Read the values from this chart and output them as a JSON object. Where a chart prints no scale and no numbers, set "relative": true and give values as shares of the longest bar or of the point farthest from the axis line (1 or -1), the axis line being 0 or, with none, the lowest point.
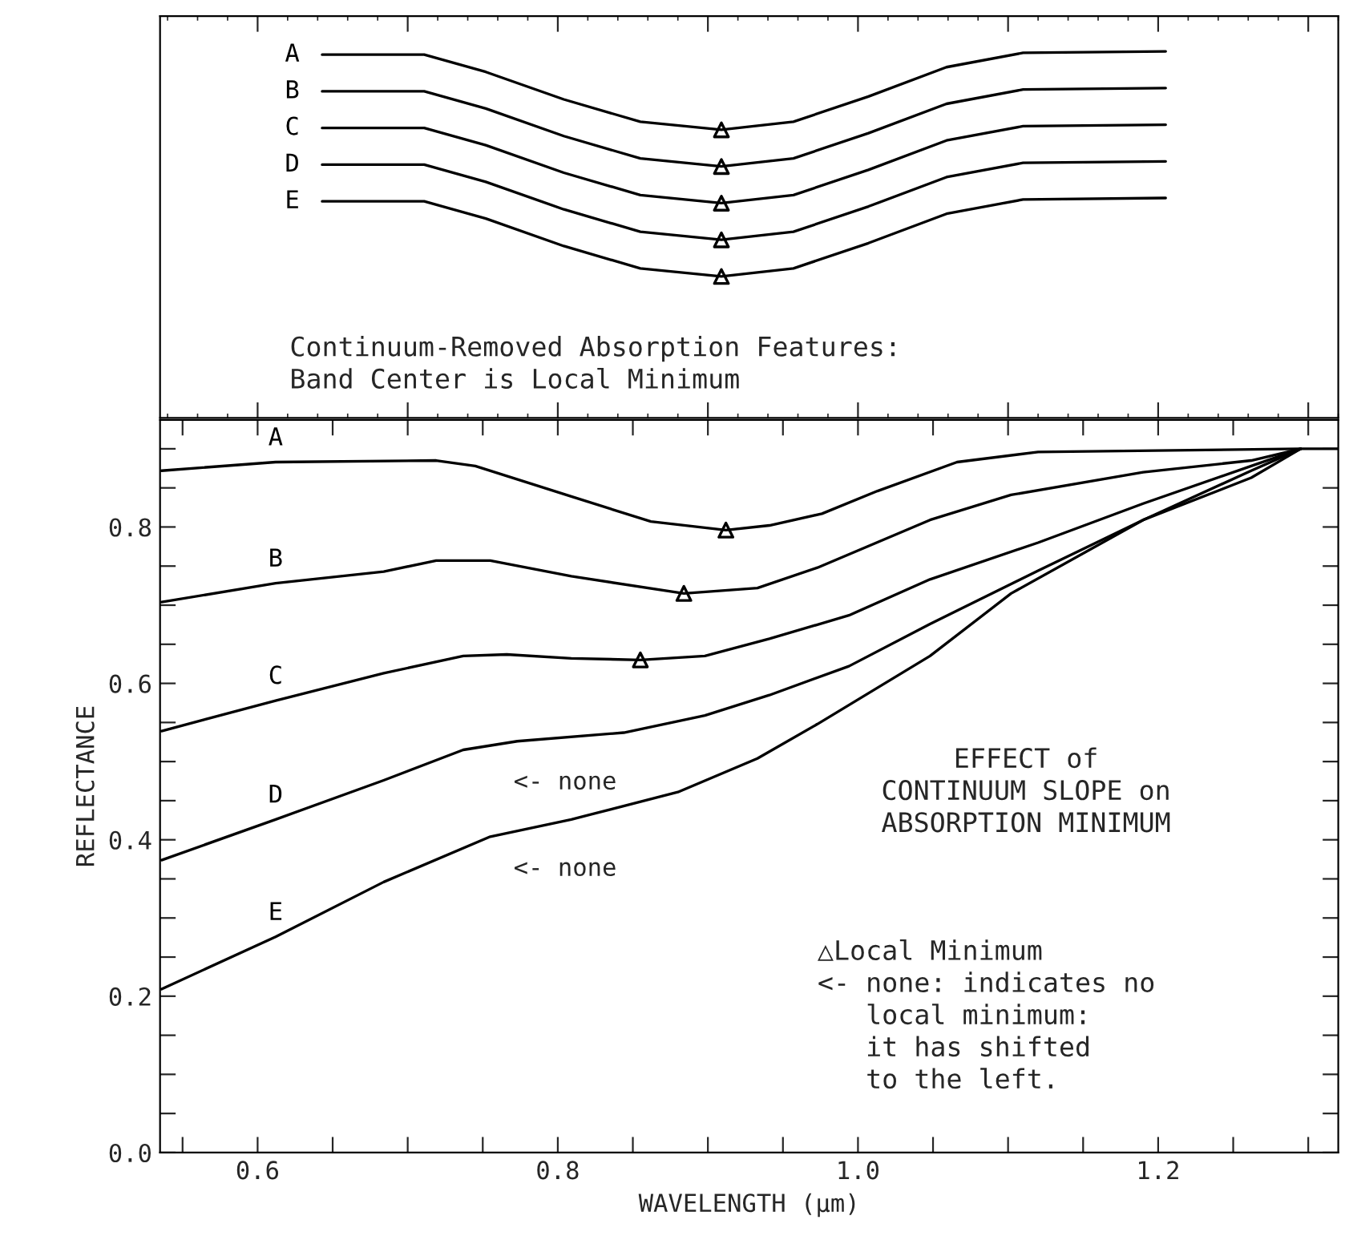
{
  "chart_data": [
    {
      "type": "line",
      "relative": true,
      "tick_labels": false,
      "xlim": [
        0.535,
        1.32
      ],
      "grid": false,
      "x": [
        0.643,
        0.711,
        0.752,
        0.804,
        0.855,
        0.909,
        0.957,
        1.007,
        1.059,
        1.11,
        1.205
      ],
      "series": [
        {
          "name": "A",
          "color": "#000000",
          "values": [
            0.991,
            0.991,
            0.944,
            0.869,
            0.808,
            0.786,
            0.808,
            0.877,
            0.957,
            0.996,
            1.0
          ]
        },
        {
          "name": "B",
          "color": "#000000",
          "values": [
            0.891,
            0.891,
            0.844,
            0.769,
            0.708,
            0.686,
            0.708,
            0.777,
            0.857,
            0.896,
            0.9
          ]
        },
        {
          "name": "C",
          "color": "#000000",
          "values": [
            0.791,
            0.791,
            0.744,
            0.669,
            0.608,
            0.586,
            0.608,
            0.677,
            0.757,
            0.796,
            0.8
          ]
        },
        {
          "name": "D",
          "color": "#000000",
          "values": [
            0.691,
            0.691,
            0.644,
            0.569,
            0.508,
            0.486,
            0.508,
            0.577,
            0.657,
            0.696,
            0.7
          ]
        },
        {
          "name": "E",
          "color": "#000000",
          "values": [
            0.591,
            0.591,
            0.544,
            0.469,
            0.408,
            0.386,
            0.408,
            0.477,
            0.557,
            0.596,
            0.6
          ]
        },
        {
          "type": "scatter",
          "marker": "triangle",
          "color": "#000000",
          "x": [
            0.909,
            0.909,
            0.909,
            0.909,
            0.909
          ],
          "values": [
            0.786,
            0.686,
            0.586,
            0.486,
            0.386
          ]
        }
      ],
      "annotations": [
        "Continuum-Removed Absorption Features:\nBand Center is Local Minimum"
      ]
    },
    {
      "type": "line",
      "xlabel": "WAVELENGTH (μm)",
      "ylabel": "REFLECTANCE",
      "xlim": [
        0.535,
        1.32
      ],
      "ylim": [
        0.0,
        0.937
      ],
      "grid": false,
      "xticks": [
        {
          "value": 0.55,
          "label": null
        },
        0.6,
        {
          "value": 0.65,
          "label": null
        },
        {
          "value": 0.7,
          "label": null
        },
        {
          "value": 0.75,
          "label": null
        },
        0.8,
        {
          "value": 0.85,
          "label": null
        },
        {
          "value": 0.9,
          "label": null
        },
        {
          "value": 0.95,
          "label": null
        },
        {
          "value": 1.0,
          "label": "1.0"
        },
        {
          "value": 1.05,
          "label": null
        },
        {
          "value": 1.1,
          "label": null
        },
        {
          "value": 1.15,
          "label": null
        },
        1.2,
        {
          "value": 1.25,
          "label": null
        },
        {
          "value": 1.3,
          "label": null
        }
      ],
      "yticks": [
        {
          "value": 0.0,
          "label": "0.0"
        },
        {
          "value": 0.05,
          "label": null
        },
        {
          "value": 0.1,
          "label": null
        },
        {
          "value": 0.15,
          "label": null
        },
        0.2,
        {
          "value": 0.25,
          "label": null
        },
        {
          "value": 0.3,
          "label": null
        },
        {
          "value": 0.35,
          "label": null
        },
        0.4,
        {
          "value": 0.45,
          "label": null
        },
        {
          "value": 0.5,
          "label": null
        },
        {
          "value": 0.55,
          "label": null
        },
        0.6,
        {
          "value": 0.65,
          "label": null
        },
        {
          "value": 0.7,
          "label": null
        },
        {
          "value": 0.75,
          "label": null
        },
        0.8,
        {
          "value": 0.85,
          "label": null
        },
        {
          "value": 0.9,
          "label": null
        }
      ],
      "series": [
        {
          "name": "A",
          "color": "#000000",
          "x": [
            0.536,
            0.612,
            0.719,
            0.745,
            0.809,
            0.862,
            0.912,
            0.941,
            0.976,
            1.013,
            1.066,
            1.12,
            1.295,
            1.32
          ],
          "values": [
            0.872,
            0.883,
            0.885,
            0.878,
            0.839,
            0.807,
            0.796,
            0.802,
            0.817,
            0.846,
            0.883,
            0.896,
            0.9,
            0.9
          ]
        },
        {
          "name": "B",
          "color": "#000000",
          "x": [
            0.536,
            0.612,
            0.684,
            0.719,
            0.755,
            0.809,
            0.884,
            0.933,
            0.973,
            1.048,
            1.102,
            1.19,
            1.262,
            1.295
          ],
          "values": [
            0.704,
            0.728,
            0.743,
            0.757,
            0.757,
            0.737,
            0.715,
            0.722,
            0.748,
            0.809,
            0.841,
            0.87,
            0.885,
            0.9
          ]
        },
        {
          "name": "C",
          "color": "#000000",
          "x": [
            0.536,
            0.612,
            0.684,
            0.737,
            0.766,
            0.809,
            0.855,
            0.898,
            0.941,
            0.994,
            1.048,
            1.12,
            1.19,
            1.262,
            1.295
          ],
          "values": [
            0.539,
            0.578,
            0.613,
            0.635,
            0.637,
            0.632,
            0.63,
            0.635,
            0.657,
            0.687,
            0.733,
            0.78,
            0.83,
            0.878,
            0.9
          ]
        },
        {
          "name": "D",
          "color": "#000000",
          "x": [
            0.536,
            0.612,
            0.684,
            0.737,
            0.773,
            0.844,
            0.898,
            0.941,
            0.994,
            1.048,
            1.12,
            1.19,
            1.262,
            1.295
          ],
          "values": [
            0.374,
            0.426,
            0.476,
            0.515,
            0.526,
            0.537,
            0.559,
            0.585,
            0.622,
            0.676,
            0.744,
            0.809,
            0.872,
            0.9
          ]
        },
        {
          "name": "E",
          "color": "#000000",
          "x": [
            0.536,
            0.612,
            0.684,
            0.755,
            0.809,
            0.88,
            0.933,
            0.973,
            1.048,
            1.102,
            1.19,
            1.262,
            1.295
          ],
          "values": [
            0.209,
            0.276,
            0.346,
            0.404,
            0.426,
            0.461,
            0.504,
            0.548,
            0.635,
            0.715,
            0.809,
            0.863,
            0.9
          ]
        },
        {
          "type": "scatter",
          "marker": "triangle",
          "color": "#000000",
          "x": [
            0.912,
            0.884,
            0.855
          ],
          "values": [
            0.796,
            0.715,
            0.63
          ]
        }
      ],
      "annotations": [
        "<- none",
        "<- none",
        "EFFECT of\nCONTINUUM SLOPE on\nABSORPTION MINIMUM",
        "△Local Minimum\n<- none: indicates no\n   local minimum:\n   it has shifted\n   to the left."
      ]
    }
  ]
}
